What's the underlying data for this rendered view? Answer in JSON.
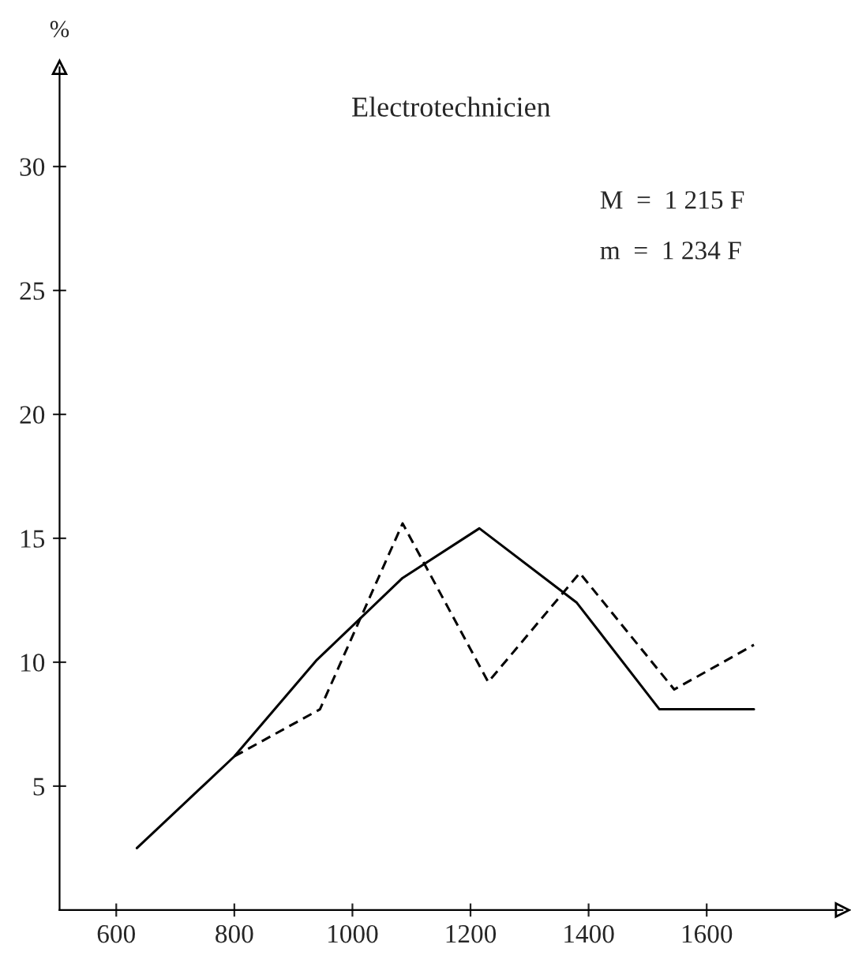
{
  "chart_data": {
    "type": "line",
    "title": "Electrotechnicien",
    "ylabel": "%",
    "annotations": [
      "M  =  1 215 F",
      "m  =  1 234 F"
    ],
    "xlim": [
      504,
      1830
    ],
    "ylim": [
      0,
      34
    ],
    "xticks": [
      600,
      800,
      1000,
      1200,
      1400,
      1600
    ],
    "yticks": [
      5,
      10,
      15,
      20,
      25,
      30
    ],
    "grid": false,
    "legend": false,
    "marker": "none",
    "series": [
      {
        "color": "#000000",
        "line_style": "solid",
        "x": [
          635,
          800,
          940,
          1085,
          1215,
          1380,
          1520,
          1680
        ],
        "values": [
          2.5,
          6.2,
          10.1,
          13.4,
          15.4,
          12.4,
          8.1,
          8.1
        ]
      },
      {
        "color": "#000000",
        "line_style": "dashed",
        "x": [
          800,
          945,
          1085,
          1230,
          1385,
          1545,
          1680
        ],
        "values": [
          6.2,
          8.1,
          15.6,
          9.2,
          13.6,
          8.9,
          10.7
        ]
      }
    ]
  }
}
